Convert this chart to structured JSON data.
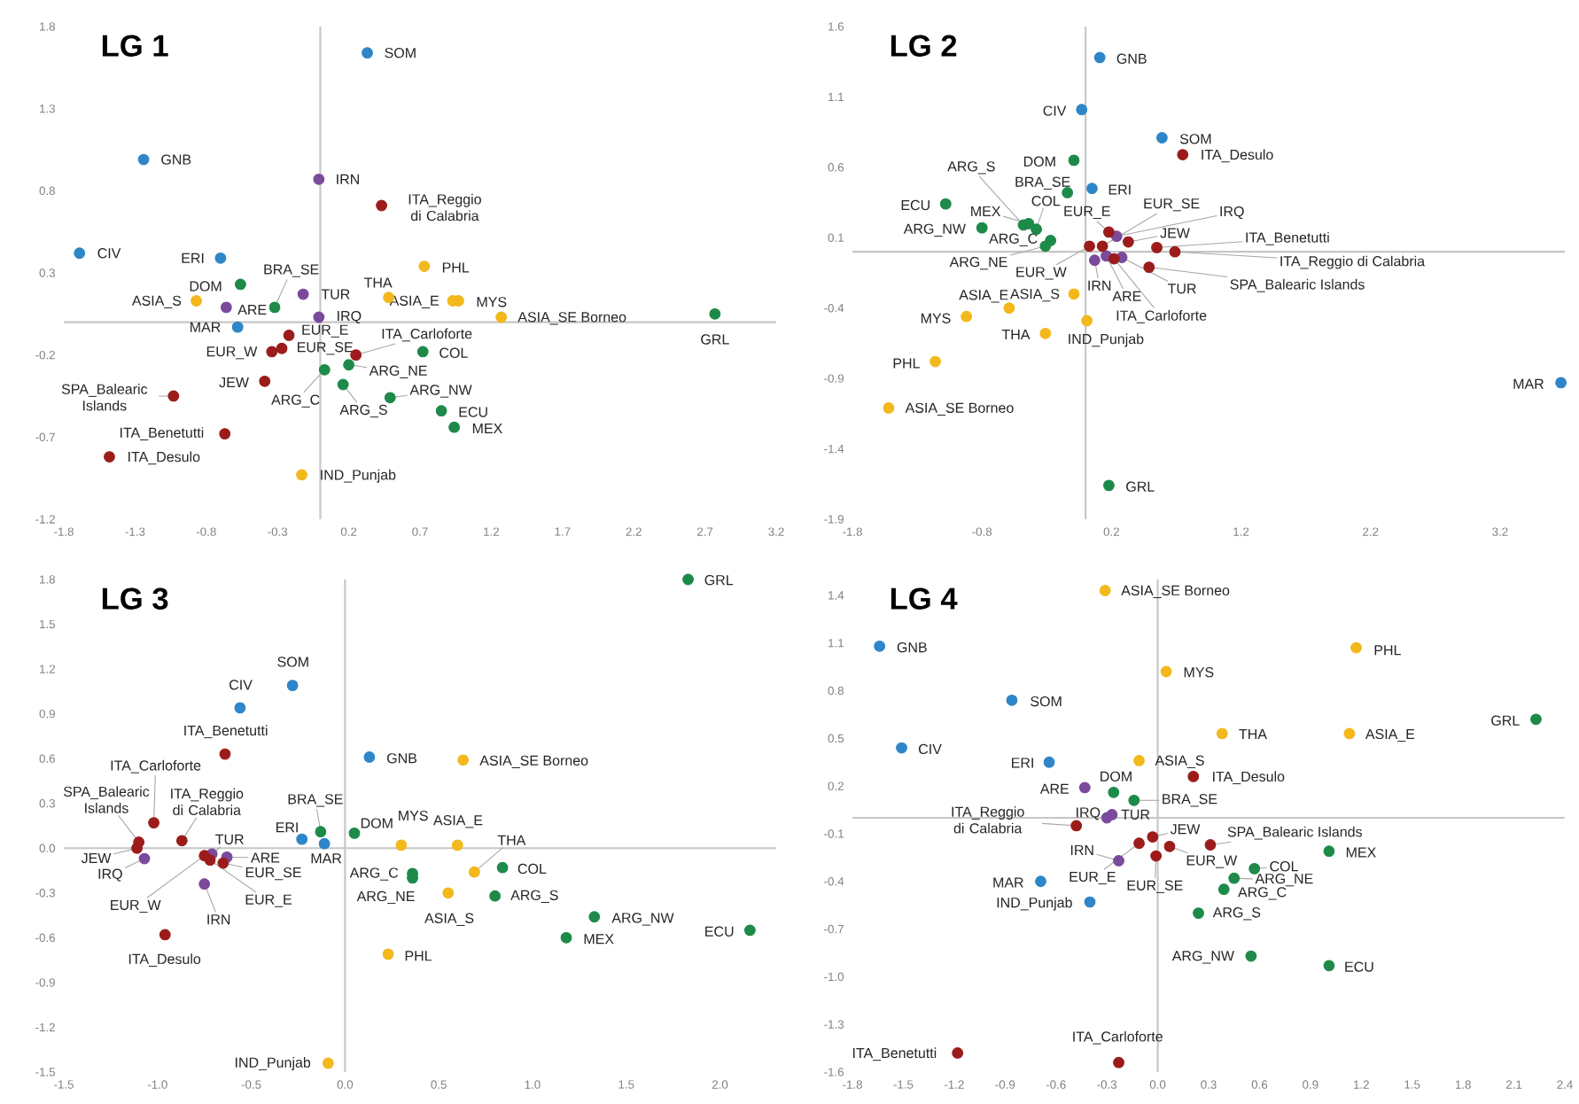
{
  "chart_data": [
    {
      "type": "scatter",
      "title": "LG 1",
      "xlim": [
        -1.8,
        3.2
      ],
      "ylim": [
        -1.2,
        1.8
      ],
      "marker": "circle",
      "xticks": [
        -1.8,
        -1.3,
        -0.8,
        -0.3,
        0.2,
        0.7,
        1.2,
        1.7,
        2.2,
        2.7,
        3.2
      ],
      "yticks": [
        -1.2,
        -0.7,
        -0.2,
        0.3,
        0.8,
        1.3,
        1.8
      ],
      "series": [
        {
          "color": "#2e86c8",
          "x": [
            0.33,
            -1.24,
            -1.69,
            -0.7,
            -0.58
          ],
          "values": [
            1.64,
            0.99,
            0.42,
            0.39,
            -0.03
          ]
        },
        {
          "color": "#7b4a9c",
          "x": [
            -0.01,
            -0.12,
            -0.66,
            -0.01
          ],
          "values": [
            0.87,
            0.17,
            0.09,
            0.03
          ]
        },
        {
          "color": "#9c1c1c",
          "x": [
            0.43,
            -0.22,
            -0.34,
            -0.27,
            0.25,
            -0.39,
            -1.03,
            -0.67,
            -1.48
          ],
          "values": [
            0.71,
            -0.08,
            -0.18,
            -0.16,
            -0.2,
            -0.36,
            -0.45,
            -0.68,
            -0.82
          ]
        },
        {
          "color": "#1e8a4a",
          "x": [
            -0.56,
            -0.32,
            2.77,
            0.72,
            0.03,
            0.2,
            0.16,
            0.49,
            0.85,
            0.94
          ],
          "values": [
            0.23,
            0.09,
            0.05,
            -0.18,
            -0.29,
            -0.26,
            -0.38,
            -0.46,
            -0.54,
            -0.64
          ]
        },
        {
          "color": "#f2b81c",
          "x": [
            0.73,
            0.48,
            -0.87,
            0.93,
            0.97,
            1.27,
            -0.13
          ],
          "values": [
            0.34,
            0.15,
            0.13,
            0.13,
            0.13,
            0.03,
            -0.93
          ]
        }
      ],
      "annotations": [
        {
          "text": "SOM",
          "x": 0.33,
          "y": 1.64
        },
        {
          "text": "GNB",
          "x": -1.24,
          "y": 0.99
        },
        {
          "text": "CIV",
          "x": -1.69,
          "y": 0.42
        },
        {
          "text": "ERI",
          "x": -0.7,
          "y": 0.39
        },
        {
          "text": "MAR",
          "x": -0.58,
          "y": -0.03
        },
        {
          "text": "IRN",
          "x": -0.01,
          "y": 0.87
        },
        {
          "text": "TUR",
          "x": -0.12,
          "y": 0.17
        },
        {
          "text": "ARE",
          "x": -0.66,
          "y": 0.09
        },
        {
          "text": "IRQ",
          "x": -0.01,
          "y": 0.03
        },
        {
          "text": "ITA_Reggio di Calabria",
          "x": 0.43,
          "y": 0.71
        },
        {
          "text": "EUR_E",
          "x": -0.22,
          "y": -0.08
        },
        {
          "text": "EUR_W",
          "x": -0.34,
          "y": -0.18
        },
        {
          "text": "EUR_SE",
          "x": -0.27,
          "y": -0.16
        },
        {
          "text": "ITA_Carloforte",
          "x": 0.25,
          "y": -0.2
        },
        {
          "text": "JEW",
          "x": -0.39,
          "y": -0.36
        },
        {
          "text": "SPA_Balearic Islands",
          "x": -1.03,
          "y": -0.45
        },
        {
          "text": "ITA_Benetutti",
          "x": -0.67,
          "y": -0.68
        },
        {
          "text": "ITA_Desulo",
          "x": -1.48,
          "y": -0.82
        },
        {
          "text": "DOM",
          "x": -0.56,
          "y": 0.23
        },
        {
          "text": "BRA_SE",
          "x": -0.32,
          "y": 0.09
        },
        {
          "text": "GRL",
          "x": 2.77,
          "y": 0.05
        },
        {
          "text": "COL",
          "x": 0.72,
          "y": -0.18
        },
        {
          "text": "ARG_C",
          "x": 0.03,
          "y": -0.29
        },
        {
          "text": "ARG_NE",
          "x": 0.2,
          "y": -0.26
        },
        {
          "text": "ARG_S",
          "x": 0.16,
          "y": -0.38
        },
        {
          "text": "ARG_NW",
          "x": 0.49,
          "y": -0.46
        },
        {
          "text": "ECU",
          "x": 0.85,
          "y": -0.54
        },
        {
          "text": "MEX",
          "x": 0.94,
          "y": -0.64
        },
        {
          "text": "PHL",
          "x": 0.73,
          "y": 0.34
        },
        {
          "text": "THA",
          "x": 0.48,
          "y": 0.15
        },
        {
          "text": "ASIA_S",
          "x": -0.87,
          "y": 0.13
        },
        {
          "text": "ASIA_E",
          "x": 0.93,
          "y": 0.13
        },
        {
          "text": "MYS",
          "x": 0.97,
          "y": 0.13
        },
        {
          "text": "ASIA_SE Borneo",
          "x": 1.27,
          "y": 0.03
        },
        {
          "text": "IND_Punjab",
          "x": -0.13,
          "y": -0.93
        }
      ]
    },
    {
      "type": "scatter",
      "title": "LG 2",
      "xlim": [
        -1.8,
        3.7
      ],
      "ylim": [
        -1.9,
        1.6
      ],
      "marker": "circle",
      "xticks": [
        -1.8,
        -0.8,
        0.2,
        1.2,
        2.2,
        3.2
      ],
      "yticks": [
        -1.9,
        -1.4,
        -0.9,
        -0.4,
        0.1,
        0.6,
        1.1,
        1.6
      ],
      "series": [
        {
          "color": "#2e86c8",
          "x": [
            0.11,
            -0.03,
            0.59,
            0.05,
            3.67
          ],
          "values": [
            1.38,
            1.01,
            0.81,
            0.45,
            -0.93
          ]
        },
        {
          "color": "#7b4a9c",
          "x": [
            0.24,
            0.07,
            0.16,
            0.28
          ],
          "values": [
            0.11,
            -0.06,
            -0.03,
            -0.04
          ]
        },
        {
          "color": "#9c1c1c",
          "x": [
            0.75,
            0.18,
            0.13,
            0.33,
            0.55,
            0.69,
            0.03,
            0.22,
            0.49
          ],
          "values": [
            0.69,
            0.14,
            0.04,
            0.07,
            0.03,
            0.0,
            0.04,
            -0.05,
            -0.11
          ]
        },
        {
          "color": "#1e8a4a",
          "x": [
            -0.09,
            -0.14,
            -1.08,
            -0.8,
            -0.48,
            -0.44,
            -0.38,
            -0.27,
            -0.31,
            0.18
          ],
          "values": [
            0.65,
            0.42,
            0.34,
            0.17,
            0.19,
            0.2,
            0.16,
            0.08,
            0.04,
            -1.66
          ]
        },
        {
          "color": "#f2b81c",
          "x": [
            -0.09,
            -0.59,
            -0.92,
            0.01,
            -0.31,
            -1.16,
            -1.52
          ],
          "values": [
            -0.3,
            -0.4,
            -0.46,
            -0.49,
            -0.58,
            -0.78,
            -1.11
          ]
        }
      ],
      "annotations": [
        {
          "text": "GNB",
          "x": 0.11,
          "y": 1.38
        },
        {
          "text": "CIV",
          "x": -0.03,
          "y": 1.01
        },
        {
          "text": "SOM",
          "x": 0.59,
          "y": 0.81
        },
        {
          "text": "ERI",
          "x": 0.05,
          "y": 0.45
        },
        {
          "text": "MAR",
          "x": 3.67,
          "y": -0.93
        },
        {
          "text": "IRQ",
          "x": 0.24,
          "y": 0.11
        },
        {
          "text": "IRN",
          "x": 0.07,
          "y": -0.06
        },
        {
          "text": "ARE",
          "x": 0.16,
          "y": -0.03
        },
        {
          "text": "TUR",
          "x": 0.28,
          "y": -0.04
        },
        {
          "text": "ITA_Desulo",
          "x": 0.75,
          "y": 0.69
        },
        {
          "text": "EUR_E",
          "x": 0.18,
          "y": 0.14
        },
        {
          "text": "EUR_SE",
          "x": 0.13,
          "y": 0.04
        },
        {
          "text": "JEW",
          "x": 0.33,
          "y": 0.07
        },
        {
          "text": "ITA_Benetutti",
          "x": 0.55,
          "y": 0.03
        },
        {
          "text": "ITA_Reggio di Calabria",
          "x": 0.69,
          "y": 0.0
        },
        {
          "text": "EUR_W",
          "x": 0.03,
          "y": 0.04
        },
        {
          "text": "ITA_Carloforte",
          "x": 0.22,
          "y": -0.05
        },
        {
          "text": "SPA_Balearic Islands",
          "x": 0.49,
          "y": -0.11
        },
        {
          "text": "DOM",
          "x": -0.09,
          "y": 0.65
        },
        {
          "text": "BRA_SE",
          "x": -0.14,
          "y": 0.42
        },
        {
          "text": "ECU",
          "x": -1.08,
          "y": 0.34
        },
        {
          "text": "ARG_NW",
          "x": -0.8,
          "y": 0.17
        },
        {
          "text": "ARG_S",
          "x": -0.48,
          "y": 0.19
        },
        {
          "text": "MEX",
          "x": -0.44,
          "y": 0.2
        },
        {
          "text": "COL",
          "x": -0.38,
          "y": 0.16
        },
        {
          "text": "ARG_C",
          "x": -0.27,
          "y": 0.08
        },
        {
          "text": "ARG_NE",
          "x": -0.31,
          "y": 0.04
        },
        {
          "text": "GRL",
          "x": 0.18,
          "y": -1.66
        },
        {
          "text": "ASIA_S",
          "x": -0.09,
          "y": -0.3
        },
        {
          "text": "ASIA_E",
          "x": -0.59,
          "y": -0.4
        },
        {
          "text": "MYS",
          "x": -0.92,
          "y": -0.46
        },
        {
          "text": "IND_Punjab",
          "x": 0.01,
          "y": -0.49
        },
        {
          "text": "THA",
          "x": -0.31,
          "y": -0.58
        },
        {
          "text": "PHL",
          "x": -1.16,
          "y": -0.78
        },
        {
          "text": "ASIA_SE Borneo",
          "x": -1.52,
          "y": -1.11
        }
      ]
    },
    {
      "type": "scatter",
      "title": "LG 3",
      "xlim": [
        -1.5,
        2.3
      ],
      "ylim": [
        -1.5,
        1.8
      ],
      "marker": "circle",
      "xticks": [
        -1.5,
        {
          "value": -1,
          "label": "-1.0"
        },
        -0.5,
        {
          "value": 0,
          "label": "0.0"
        },
        0.5,
        {
          "value": 1,
          "label": "1.0"
        },
        1.5,
        {
          "value": 2,
          "label": "2.0"
        }
      ],
      "yticks": [
        -1.5,
        -1.2,
        -0.9,
        -0.6,
        -0.3,
        {
          "value": 0,
          "label": "0.0"
        },
        0.3,
        0.6,
        0.9,
        1.2,
        1.5,
        1.8
      ],
      "series": [
        {
          "color": "#2e86c8",
          "x": [
            -0.28,
            -0.56,
            0.13,
            -0.23,
            -0.11
          ],
          "values": [
            1.09,
            0.94,
            0.61,
            0.06,
            0.03
          ]
        },
        {
          "color": "#7b4a9c",
          "x": [
            -1.07,
            -0.71,
            -0.63,
            -0.75
          ],
          "values": [
            -0.07,
            -0.04,
            -0.06,
            -0.24
          ]
        },
        {
          "color": "#9c1c1c",
          "x": [
            -0.64,
            -1.02,
            -1.1,
            -1.11,
            -0.87,
            -0.65,
            -0.72,
            -0.75,
            -0.96
          ],
          "values": [
            0.63,
            0.17,
            0.04,
            0.0,
            0.05,
            -0.1,
            -0.08,
            -0.05,
            -0.58
          ]
        },
        {
          "color": "#1e8a4a",
          "x": [
            1.83,
            -0.13,
            0.05,
            0.84,
            0.36,
            0.36,
            0.8,
            1.33,
            1.18,
            2.16
          ],
          "values": [
            1.8,
            0.11,
            0.1,
            -0.13,
            -0.17,
            -0.2,
            -0.32,
            -0.46,
            -0.6,
            -0.55
          ]
        },
        {
          "color": "#f2b81c",
          "x": [
            0.63,
            0.3,
            0.6,
            0.69,
            0.55,
            0.23,
            -0.09
          ],
          "values": [
            0.59,
            0.02,
            0.02,
            -0.16,
            -0.3,
            -0.71,
            -1.44
          ]
        }
      ],
      "annotations": [
        {
          "text": "SOM",
          "x": -0.28,
          "y": 1.09
        },
        {
          "text": "CIV",
          "x": -0.56,
          "y": 0.94
        },
        {
          "text": "GNB",
          "x": 0.13,
          "y": 0.61
        },
        {
          "text": "ERI",
          "x": -0.23,
          "y": 0.06
        },
        {
          "text": "MAR",
          "x": -0.11,
          "y": 0.03
        },
        {
          "text": "IRQ",
          "x": -1.07,
          "y": -0.07
        },
        {
          "text": "TUR",
          "x": -0.71,
          "y": -0.04
        },
        {
          "text": "ARE",
          "x": -0.63,
          "y": -0.06
        },
        {
          "text": "IRN",
          "x": -0.75,
          "y": -0.24
        },
        {
          "text": "ITA_Benetutti",
          "x": -0.64,
          "y": 0.63
        },
        {
          "text": "ITA_Carloforte",
          "x": -1.02,
          "y": 0.17
        },
        {
          "text": "SPA_Balearic Islands",
          "x": -1.1,
          "y": 0.04
        },
        {
          "text": "JEW",
          "x": -1.11,
          "y": 0.0
        },
        {
          "text": "ITA_Reggio di Calabria",
          "x": -0.87,
          "y": 0.05
        },
        {
          "text": "EUR_SE",
          "x": -0.65,
          "y": -0.1
        },
        {
          "text": "EUR_E",
          "x": -0.72,
          "y": -0.08
        },
        {
          "text": "EUR_W",
          "x": -0.75,
          "y": -0.05
        },
        {
          "text": "ITA_Desulo",
          "x": -0.96,
          "y": -0.58
        },
        {
          "text": "GRL",
          "x": 1.83,
          "y": 1.8
        },
        {
          "text": "BRA_SE",
          "x": -0.13,
          "y": 0.11
        },
        {
          "text": "DOM",
          "x": 0.05,
          "y": 0.1
        },
        {
          "text": "COL",
          "x": 0.84,
          "y": -0.13
        },
        {
          "text": "ARG_C",
          "x": 0.36,
          "y": -0.17
        },
        {
          "text": "ARG_NE",
          "x": 0.36,
          "y": -0.2
        },
        {
          "text": "ARG_S",
          "x": 0.8,
          "y": -0.32
        },
        {
          "text": "ARG_NW",
          "x": 1.33,
          "y": -0.46
        },
        {
          "text": "MEX",
          "x": 1.18,
          "y": -0.6
        },
        {
          "text": "ECU",
          "x": 2.16,
          "y": -0.55
        },
        {
          "text": "ASIA_SE Borneo",
          "x": 0.63,
          "y": 0.59
        },
        {
          "text": "MYS",
          "x": 0.3,
          "y": 0.02
        },
        {
          "text": "ASIA_E",
          "x": 0.6,
          "y": 0.02
        },
        {
          "text": "THA",
          "x": 0.69,
          "y": -0.16
        },
        {
          "text": "ASIA_S",
          "x": 0.55,
          "y": -0.3
        },
        {
          "text": "PHL",
          "x": 0.23,
          "y": -0.71
        },
        {
          "text": "IND_Punjab",
          "x": -0.09,
          "y": -1.44
        }
      ]
    },
    {
      "type": "scatter",
      "title": "LG 4",
      "xlim": [
        -1.8,
        2.4
      ],
      "ylim": [
        -1.6,
        1.5
      ],
      "marker": "circle",
      "xticks": [
        -1.8,
        -1.5,
        -1.2,
        -0.9,
        -0.6,
        -0.3,
        {
          "value": 0,
          "label": "0.0"
        },
        0.3,
        0.6,
        0.9,
        1.2,
        1.5,
        1.8,
        2.1,
        2.4
      ],
      "yticks": [
        -1.6,
        -1.3,
        {
          "value": -1,
          "label": "-1.0"
        },
        -0.7,
        -0.4,
        -0.1,
        0.2,
        0.5,
        0.8,
        1.1,
        1.4
      ],
      "series": [
        {
          "color": "#2e86c8",
          "x": [
            -1.64,
            -0.86,
            -1.51,
            -0.64,
            -0.69,
            -0.4
          ],
          "values": [
            1.08,
            0.74,
            0.44,
            0.35,
            -0.4,
            -0.53
          ]
        },
        {
          "color": "#7b4a9c",
          "x": [
            -0.43,
            -0.3,
            -0.27,
            -0.23
          ],
          "values": [
            0.19,
            0.0,
            0.02,
            -0.27
          ]
        },
        {
          "color": "#9c1c1c",
          "x": [
            0.21,
            -0.48,
            -0.03,
            0.31,
            -0.11,
            0.07,
            -0.01,
            -1.18,
            -0.23
          ],
          "values": [
            0.26,
            -0.05,
            -0.12,
            -0.17,
            -0.16,
            -0.18,
            -0.24,
            -1.48,
            -1.54
          ]
        },
        {
          "color": "#1e8a4a",
          "x": [
            2.23,
            -0.26,
            -0.14,
            1.01,
            0.57,
            0.45,
            0.39,
            0.24,
            0.55,
            1.01
          ],
          "values": [
            0.62,
            0.16,
            0.11,
            -0.21,
            -0.32,
            -0.38,
            -0.45,
            -0.6,
            -0.87,
            -0.93
          ]
        },
        {
          "color": "#f2b81c",
          "x": [
            -0.31,
            1.17,
            0.05,
            0.38,
            1.13,
            -0.11
          ],
          "values": [
            1.43,
            1.07,
            0.92,
            0.53,
            0.53,
            0.36
          ]
        }
      ],
      "annotations": [
        {
          "text": "GNB",
          "x": -1.64,
          "y": 1.08
        },
        {
          "text": "SOM",
          "x": -0.86,
          "y": 0.74
        },
        {
          "text": "CIV",
          "x": -1.51,
          "y": 0.44
        },
        {
          "text": "ERI",
          "x": -0.64,
          "y": 0.35
        },
        {
          "text": "MAR",
          "x": -0.69,
          "y": -0.4
        },
        {
          "text": "IND_Punjab",
          "x": -0.4,
          "y": -0.53
        },
        {
          "text": "ARE",
          "x": -0.43,
          "y": 0.19
        },
        {
          "text": "IRQ",
          "x": -0.3,
          "y": 0.0
        },
        {
          "text": "TUR",
          "x": -0.27,
          "y": 0.02
        },
        {
          "text": "IRN",
          "x": -0.23,
          "y": -0.27
        },
        {
          "text": "ITA_Desulo",
          "x": 0.21,
          "y": 0.26
        },
        {
          "text": "ITA_Reggio di Calabria",
          "x": -0.48,
          "y": -0.05
        },
        {
          "text": "JEW",
          "x": -0.03,
          "y": -0.12
        },
        {
          "text": "SPA_Balearic Islands",
          "x": 0.31,
          "y": -0.17
        },
        {
          "text": "EUR_E",
          "x": -0.11,
          "y": -0.16
        },
        {
          "text": "EUR_W",
          "x": 0.07,
          "y": -0.18
        },
        {
          "text": "EUR_SE",
          "x": -0.01,
          "y": -0.24
        },
        {
          "text": "ITA_Benetutti",
          "x": -1.18,
          "y": -1.48
        },
        {
          "text": "ITA_Carloforte",
          "x": -0.23,
          "y": -1.54
        },
        {
          "text": "GRL",
          "x": 2.23,
          "y": 0.62
        },
        {
          "text": "DOM",
          "x": -0.26,
          "y": 0.16
        },
        {
          "text": "BRA_SE",
          "x": -0.14,
          "y": 0.11
        },
        {
          "text": "MEX",
          "x": 1.01,
          "y": -0.21
        },
        {
          "text": "COL",
          "x": 0.57,
          "y": -0.32
        },
        {
          "text": "ARG_NE",
          "x": 0.45,
          "y": -0.38
        },
        {
          "text": "ARG_C",
          "x": 0.39,
          "y": -0.45
        },
        {
          "text": "ARG_S",
          "x": 0.24,
          "y": -0.6
        },
        {
          "text": "ARG_NW",
          "x": 0.55,
          "y": -0.87
        },
        {
          "text": "ECU",
          "x": 1.01,
          "y": -0.93
        },
        {
          "text": "ASIA_SE Borneo",
          "x": -0.31,
          "y": 1.43
        },
        {
          "text": "PHL",
          "x": 1.17,
          "y": 1.07
        },
        {
          "text": "MYS",
          "x": 0.05,
          "y": 0.92
        },
        {
          "text": "THA",
          "x": 0.38,
          "y": 0.53
        },
        {
          "text": "ASIA_E",
          "x": 1.13,
          "y": 0.53
        },
        {
          "text": "ASIA_S",
          "x": -0.11,
          "y": 0.36
        }
      ]
    }
  ]
}
